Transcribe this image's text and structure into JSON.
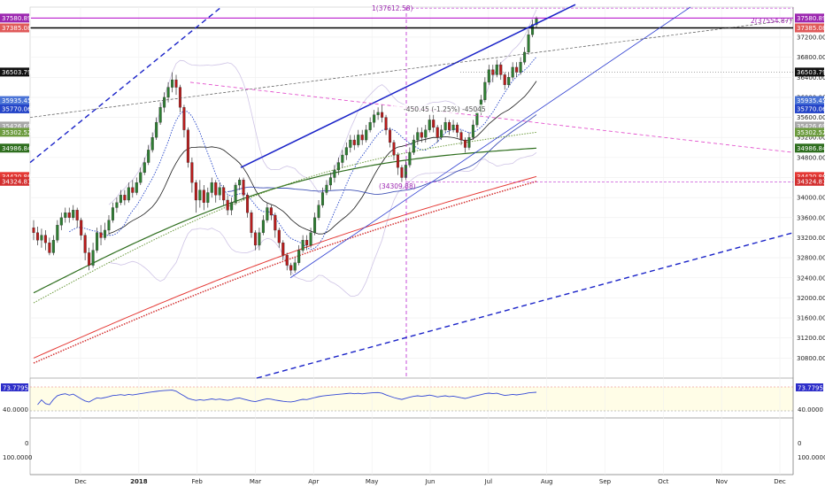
{
  "chart_data": {
    "type": "candlestick",
    "main": {
      "y_ticks": [
        "37200.00",
        "36800.00",
        "36400.00",
        "36000.00",
        "35600.00",
        "35200.00",
        "34800.00",
        "34400.00",
        "34000.00",
        "33600.00",
        "33200.00",
        "32800.00",
        "32400.00",
        "32000.00",
        "31600.00",
        "31200.00",
        "30800.00"
      ],
      "ylim": [
        30400,
        37800
      ],
      "x_ticks": [
        "Dec",
        "2018",
        "Feb",
        "Mar",
        "Apr",
        "May",
        "Jun",
        "Jul",
        "Aug",
        "Sep",
        "Oct",
        "Nov",
        "Dec"
      ],
      "price_badges": [
        {
          "label": "37580.89",
          "value": 37580.89,
          "color": "#9c27b0"
        },
        {
          "label": "37385.08",
          "value": 37385.08,
          "color": "#e05a5a"
        },
        {
          "label": "36503.79",
          "value": 36503.79,
          "color": "#111111"
        },
        {
          "label": "35935.45",
          "value": 35935.45,
          "color": "#4a73d6"
        },
        {
          "label": "35770.06",
          "value": 35770.06,
          "color": "#2545c8"
        },
        {
          "label": "35426.69",
          "value": 35426.69,
          "color": "#a8a8a8"
        },
        {
          "label": "35302.52",
          "value": 35302.52,
          "color": "#6c9b3e"
        },
        {
          "label": "34986.84",
          "value": 34986.84,
          "color": "#2e6e1e"
        },
        {
          "label": "34420.86",
          "value": 34420.86,
          "color": "#e53935"
        },
        {
          "label": "34324.81",
          "value": 34324.81,
          "color": "#d32f2f"
        }
      ],
      "annotations": {
        "high_label": "1(37612.58)",
        "fib_label": "2(37554.87)",
        "measure_label": "-450.45 (-1.25%) -45045",
        "low_label": "(34309.88)"
      },
      "close_markers": [
        37580.89,
        37385.08,
        36503.79,
        34420.86,
        34324.81
      ],
      "candles": [
        {
          "o": 33400,
          "c": 33300,
          "h": 33550,
          "l": 33150
        },
        {
          "o": 33300,
          "c": 33150,
          "h": 33420,
          "l": 33050
        },
        {
          "o": 33150,
          "c": 33250,
          "h": 33380,
          "l": 33000
        },
        {
          "o": 33250,
          "c": 33100,
          "h": 33350,
          "l": 32950
        },
        {
          "o": 33100,
          "c": 32900,
          "h": 33200,
          "l": 32850
        },
        {
          "o": 32900,
          "c": 33150,
          "h": 33250,
          "l": 32850
        },
        {
          "o": 33150,
          "c": 33450,
          "h": 33550,
          "l": 33100
        },
        {
          "o": 33450,
          "c": 33600,
          "h": 33700,
          "l": 33350
        },
        {
          "o": 33600,
          "c": 33700,
          "h": 33800,
          "l": 33500
        },
        {
          "o": 33700,
          "c": 33600,
          "h": 33800,
          "l": 33500
        },
        {
          "o": 33600,
          "c": 33750,
          "h": 33850,
          "l": 33550
        },
        {
          "o": 33750,
          "c": 33550,
          "h": 33800,
          "l": 33400
        },
        {
          "o": 33550,
          "c": 33250,
          "h": 33600,
          "l": 33150
        },
        {
          "o": 33250,
          "c": 32900,
          "h": 33300,
          "l": 32750
        },
        {
          "o": 32900,
          "c": 32650,
          "h": 33000,
          "l": 32550
        },
        {
          "o": 32650,
          "c": 32950,
          "h": 33100,
          "l": 32600
        },
        {
          "o": 32950,
          "c": 33300,
          "h": 33400,
          "l": 32900
        },
        {
          "o": 33300,
          "c": 33200,
          "h": 33450,
          "l": 33050
        },
        {
          "o": 33200,
          "c": 33350,
          "h": 33500,
          "l": 33150
        },
        {
          "o": 33350,
          "c": 33550,
          "h": 33650,
          "l": 33250
        },
        {
          "o": 33550,
          "c": 33800,
          "h": 33900,
          "l": 33500
        },
        {
          "o": 33800,
          "c": 33900,
          "h": 34000,
          "l": 33700
        },
        {
          "o": 33900,
          "c": 34050,
          "h": 34150,
          "l": 33850
        },
        {
          "o": 34050,
          "c": 33950,
          "h": 34150,
          "l": 33850
        },
        {
          "o": 33950,
          "c": 34200,
          "h": 34300,
          "l": 33900
        },
        {
          "o": 34200,
          "c": 34100,
          "h": 34350,
          "l": 34000
        },
        {
          "o": 34100,
          "c": 34300,
          "h": 34400,
          "l": 34050
        },
        {
          "o": 34300,
          "c": 34500,
          "h": 34600,
          "l": 34250
        },
        {
          "o": 34500,
          "c": 34700,
          "h": 34800,
          "l": 34450
        },
        {
          "o": 34700,
          "c": 34950,
          "h": 35050,
          "l": 34650
        },
        {
          "o": 34950,
          "c": 35200,
          "h": 35300,
          "l": 34900
        },
        {
          "o": 35200,
          "c": 35500,
          "h": 35600,
          "l": 35150
        },
        {
          "o": 35500,
          "c": 35800,
          "h": 35900,
          "l": 35450
        },
        {
          "o": 35800,
          "c": 36000,
          "h": 36100,
          "l": 35700
        },
        {
          "o": 36000,
          "c": 36200,
          "h": 36300,
          "l": 35900
        },
        {
          "o": 36200,
          "c": 36350,
          "h": 36500,
          "l": 36100
        },
        {
          "o": 36350,
          "c": 36200,
          "h": 36450,
          "l": 36050
        },
        {
          "o": 36200,
          "c": 35800,
          "h": 36250,
          "l": 35700
        },
        {
          "o": 35800,
          "c": 35350,
          "h": 35850,
          "l": 35200
        },
        {
          "o": 35350,
          "c": 34700,
          "h": 35400,
          "l": 34600
        },
        {
          "o": 34700,
          "c": 34300,
          "h": 34800,
          "l": 34100
        },
        {
          "o": 34300,
          "c": 33950,
          "h": 34350,
          "l": 33700
        },
        {
          "o": 33950,
          "c": 34150,
          "h": 34350,
          "l": 33800
        },
        {
          "o": 34150,
          "c": 33900,
          "h": 34250,
          "l": 33750
        },
        {
          "o": 33900,
          "c": 34100,
          "h": 34200,
          "l": 33800
        },
        {
          "o": 34100,
          "c": 34300,
          "h": 34400,
          "l": 34000
        },
        {
          "o": 34300,
          "c": 34050,
          "h": 34350,
          "l": 33900
        },
        {
          "o": 34050,
          "c": 34200,
          "h": 34300,
          "l": 33950
        },
        {
          "o": 34200,
          "c": 33950,
          "h": 34250,
          "l": 33850
        },
        {
          "o": 33950,
          "c": 33750,
          "h": 34050,
          "l": 33650
        },
        {
          "o": 33750,
          "c": 33900,
          "h": 34000,
          "l": 33650
        },
        {
          "o": 33900,
          "c": 34250,
          "h": 34300,
          "l": 33850
        },
        {
          "o": 34250,
          "c": 34350,
          "h": 34400,
          "l": 34150
        },
        {
          "o": 34350,
          "c": 34050,
          "h": 34400,
          "l": 33950
        },
        {
          "o": 34050,
          "c": 33700,
          "h": 34100,
          "l": 33600
        },
        {
          "o": 33700,
          "c": 33300,
          "h": 33750,
          "l": 33200
        },
        {
          "o": 33300,
          "c": 33050,
          "h": 33350,
          "l": 32950
        },
        {
          "o": 33050,
          "c": 33300,
          "h": 33400,
          "l": 32950
        },
        {
          "o": 33300,
          "c": 33550,
          "h": 33650,
          "l": 33250
        },
        {
          "o": 33550,
          "c": 33800,
          "h": 33900,
          "l": 33500
        },
        {
          "o": 33800,
          "c": 33650,
          "h": 33850,
          "l": 33550
        },
        {
          "o": 33650,
          "c": 33350,
          "h": 33700,
          "l": 33200
        },
        {
          "o": 33350,
          "c": 33100,
          "h": 33400,
          "l": 33000
        },
        {
          "o": 33100,
          "c": 32850,
          "h": 33150,
          "l": 32750
        },
        {
          "o": 32850,
          "c": 32650,
          "h": 32900,
          "l": 32550
        },
        {
          "o": 32650,
          "c": 32550,
          "h": 32700,
          "l": 32450
        },
        {
          "o": 32550,
          "c": 32700,
          "h": 32800,
          "l": 32500
        },
        {
          "o": 32700,
          "c": 32950,
          "h": 33050,
          "l": 32650
        },
        {
          "o": 32950,
          "c": 33150,
          "h": 33250,
          "l": 32900
        },
        {
          "o": 33150,
          "c": 33050,
          "h": 33250,
          "l": 32950
        },
        {
          "o": 33050,
          "c": 33300,
          "h": 33400,
          "l": 33000
        },
        {
          "o": 33300,
          "c": 33600,
          "h": 33700,
          "l": 33250
        },
        {
          "o": 33600,
          "c": 33850,
          "h": 33950,
          "l": 33550
        },
        {
          "o": 33850,
          "c": 34100,
          "h": 34200,
          "l": 33800
        },
        {
          "o": 34100,
          "c": 34250,
          "h": 34350,
          "l": 34050
        },
        {
          "o": 34250,
          "c": 34400,
          "h": 34500,
          "l": 34150
        },
        {
          "o": 34400,
          "c": 34550,
          "h": 34650,
          "l": 34300
        },
        {
          "o": 34550,
          "c": 34700,
          "h": 34800,
          "l": 34450
        },
        {
          "o": 34700,
          "c": 34850,
          "h": 34950,
          "l": 34600
        },
        {
          "o": 34850,
          "c": 35000,
          "h": 35100,
          "l": 34750
        },
        {
          "o": 35000,
          "c": 35150,
          "h": 35250,
          "l": 34900
        },
        {
          "o": 35150,
          "c": 35050,
          "h": 35250,
          "l": 34950
        },
        {
          "o": 35050,
          "c": 35250,
          "h": 35350,
          "l": 35000
        },
        {
          "o": 35250,
          "c": 35150,
          "h": 35350,
          "l": 35050
        },
        {
          "o": 35150,
          "c": 35350,
          "h": 35450,
          "l": 35100
        },
        {
          "o": 35350,
          "c": 35500,
          "h": 35600,
          "l": 35300
        },
        {
          "o": 35500,
          "c": 35650,
          "h": 35750,
          "l": 35400
        },
        {
          "o": 35650,
          "c": 35700,
          "h": 35800,
          "l": 35550
        },
        {
          "o": 35700,
          "c": 35600,
          "h": 35850,
          "l": 35500
        },
        {
          "o": 35600,
          "c": 35350,
          "h": 35650,
          "l": 35250
        },
        {
          "o": 35350,
          "c": 35100,
          "h": 35400,
          "l": 35000
        },
        {
          "o": 35100,
          "c": 34850,
          "h": 35150,
          "l": 34750
        },
        {
          "o": 34850,
          "c": 34600,
          "h": 34900,
          "l": 34450
        },
        {
          "o": 34600,
          "c": 34400,
          "h": 34650,
          "l": 34309.88
        },
        {
          "o": 34400,
          "c": 34650,
          "h": 34750,
          "l": 34350
        },
        {
          "o": 34650,
          "c": 34900,
          "h": 35000,
          "l": 34600
        },
        {
          "o": 34900,
          "c": 35150,
          "h": 35250,
          "l": 34850
        },
        {
          "o": 35150,
          "c": 35300,
          "h": 35400,
          "l": 35050
        },
        {
          "o": 35300,
          "c": 35200,
          "h": 35400,
          "l": 35100
        },
        {
          "o": 35200,
          "c": 35350,
          "h": 35450,
          "l": 35100
        },
        {
          "o": 35350,
          "c": 35550,
          "h": 35650,
          "l": 35300
        },
        {
          "o": 35550,
          "c": 35400,
          "h": 35650,
          "l": 35300
        },
        {
          "o": 35400,
          "c": 35200,
          "h": 35450,
          "l": 35100
        },
        {
          "o": 35200,
          "c": 35350,
          "h": 35450,
          "l": 35150
        },
        {
          "o": 35350,
          "c": 35500,
          "h": 35600,
          "l": 35300
        },
        {
          "o": 35500,
          "c": 35350,
          "h": 35550,
          "l": 35250
        },
        {
          "o": 35350,
          "c": 35450,
          "h": 35550,
          "l": 35300
        },
        {
          "o": 35450,
          "c": 35300,
          "h": 35500,
          "l": 35200
        },
        {
          "o": 35300,
          "c": 35150,
          "h": 35350,
          "l": 35050
        },
        {
          "o": 35150,
          "c": 35000,
          "h": 35200,
          "l": 34900
        },
        {
          "o": 35000,
          "c": 35200,
          "h": 35300,
          "l": 34950
        },
        {
          "o": 35200,
          "c": 35450,
          "h": 35550,
          "l": 35150
        },
        {
          "o": 35450,
          "c": 35700,
          "h": 35800,
          "l": 35400
        },
        {
          "o": 35700,
          "c": 35950,
          "h": 36050,
          "l": 35650
        },
        {
          "o": 35950,
          "c": 36300,
          "h": 36400,
          "l": 35900
        },
        {
          "o": 36300,
          "c": 36550,
          "h": 36650,
          "l": 36250
        },
        {
          "o": 36550,
          "c": 36450,
          "h": 36650,
          "l": 36300
        },
        {
          "o": 36450,
          "c": 36650,
          "h": 36750,
          "l": 36400
        },
        {
          "o": 36650,
          "c": 36450,
          "h": 36700,
          "l": 36350
        },
        {
          "o": 36450,
          "c": 36250,
          "h": 36500,
          "l": 36150
        },
        {
          "o": 36250,
          "c": 36400,
          "h": 36500,
          "l": 36200
        },
        {
          "o": 36400,
          "c": 36600,
          "h": 36700,
          "l": 36350
        },
        {
          "o": 36600,
          "c": 36500,
          "h": 36700,
          "l": 36400
        },
        {
          "o": 36500,
          "c": 36700,
          "h": 36800,
          "l": 36450
        },
        {
          "o": 36700,
          "c": 36900,
          "h": 37000,
          "l": 36650
        },
        {
          "o": 36900,
          "c": 37250,
          "h": 37350,
          "l": 36850
        },
        {
          "o": 37250,
          "c": 37450,
          "h": 37550,
          "l": 37200
        },
        {
          "o": 37450,
          "c": 37580.89,
          "h": 37612.58,
          "l": 37385.08
        }
      ]
    },
    "rsi": {
      "value_label": "73.7795",
      "level_label": "40.0000"
    },
    "panel3": {
      "top_label": "0",
      "bottom_label": "100.0000"
    }
  }
}
